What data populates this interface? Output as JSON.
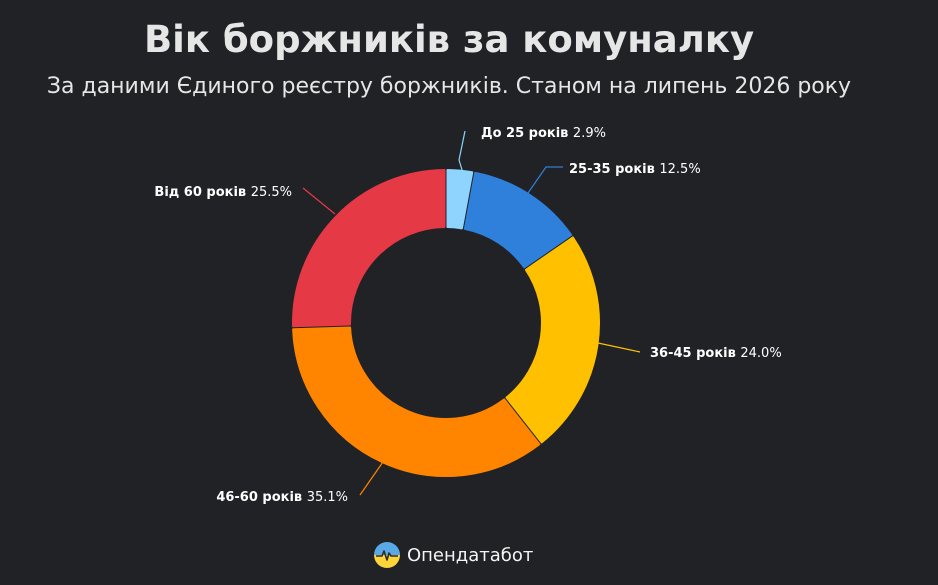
{
  "chart_data": {
    "type": "pie",
    "title": "Вік боржників за комуналку",
    "subtitle": "За даними Єдиного реєстру боржників. Станом на липень 2026 року",
    "categories": [
      "До 25 років",
      "25-35 років",
      "36-45 років",
      "46-60 років",
      "Від 60 років"
    ],
    "values": [
      2.9,
      12.5,
      24.0,
      35.1,
      25.5
    ],
    "value_labels": [
      "2.9%",
      "12.5%",
      "24.0%",
      "35.1%",
      "25.5%"
    ],
    "colors": [
      "#8fd3ff",
      "#2f80db",
      "#ffc000",
      "#ff8500",
      "#e63946"
    ],
    "donut": true,
    "legend": "none"
  },
  "brand": {
    "name": "Опендатабот",
    "icon": "opendatabot-logo-icon"
  }
}
